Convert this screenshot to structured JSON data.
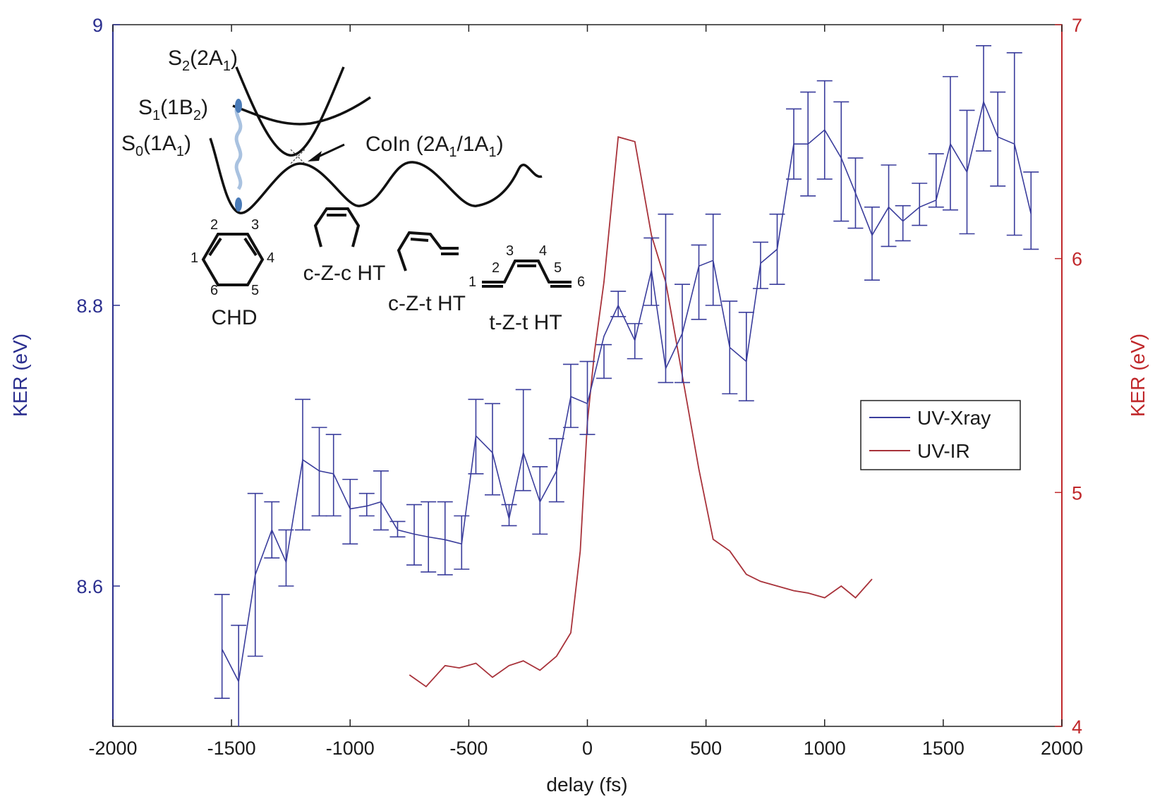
{
  "chart_data": {
    "type": "line",
    "xlabel": "delay (fs)",
    "ylabel_left": "KER (eV)",
    "ylabel_right": "KER (eV)",
    "xlim": [
      -2000,
      2000
    ],
    "ylim_left": [
      8.5,
      9.0
    ],
    "ylim_right": [
      4,
      7
    ],
    "x_ticks": [
      -2000,
      -1500,
      -1000,
      -500,
      0,
      500,
      1000,
      1500,
      2000
    ],
    "x_tick_labels": [
      "-2000",
      "-1500",
      "-1000",
      "-500",
      "0",
      "500",
      "1000",
      "1500",
      "2000"
    ],
    "y_left_ticks": [
      8.6,
      8.8,
      9.0
    ],
    "y_left_tick_labels": [
      "8.6",
      "8.8",
      "9"
    ],
    "y_right_ticks": [
      4,
      5,
      6,
      7
    ],
    "y_right_tick_labels": [
      "4",
      "5",
      "6",
      "7"
    ],
    "grid": false,
    "legend": {
      "placement": "center-right",
      "entries": [
        "UV-Xray",
        "UV-IR"
      ]
    },
    "colors": {
      "uv_xray": "#3a3d9c",
      "uv_ir": "#a8323a",
      "left_axis": "#2b2f8f",
      "right_axis": "#c0282b"
    },
    "series": [
      {
        "name": "UV-Xray",
        "axis": "left",
        "x": [
          -1540,
          -1470,
          -1400,
          -1330,
          -1270,
          -1200,
          -1130,
          -1070,
          -1000,
          -930,
          -870,
          -800,
          -730,
          -670,
          -600,
          -530,
          -470,
          -400,
          -330,
          -270,
          -200,
          -130,
          -70,
          0,
          70,
          130,
          200,
          270,
          330,
          400,
          470,
          530,
          600,
          670,
          730,
          800,
          870,
          930,
          1000,
          1070,
          1130,
          1200,
          1270,
          1330,
          1400,
          1470,
          1530,
          1600,
          1670,
          1730,
          1800,
          1870
        ],
        "y": [
          8.555,
          8.532,
          8.608,
          8.64,
          8.617,
          8.69,
          8.682,
          8.68,
          8.655,
          8.657,
          8.66,
          8.64,
          8.637,
          8.635,
          8.633,
          8.63,
          8.707,
          8.695,
          8.648,
          8.695,
          8.66,
          8.682,
          8.735,
          8.73,
          8.778,
          8.8,
          8.775,
          8.825,
          8.755,
          8.78,
          8.828,
          8.832,
          8.77,
          8.76,
          8.83,
          8.84,
          8.915,
          8.915,
          8.925,
          8.905,
          8.88,
          8.85,
          8.87,
          8.86,
          8.87,
          8.875,
          8.915,
          8.895,
          8.945,
          8.92,
          8.915,
          8.865
        ],
        "err_low": [
          8.52,
          8.48,
          8.55,
          8.62,
          8.6,
          8.64,
          8.65,
          8.65,
          8.63,
          8.65,
          8.64,
          8.635,
          8.615,
          8.61,
          8.608,
          8.612,
          8.68,
          8.665,
          8.643,
          8.668,
          8.637,
          8.66,
          8.713,
          8.708,
          8.748,
          8.792,
          8.762,
          8.8,
          8.745,
          8.745,
          8.79,
          8.8,
          8.737,
          8.732,
          8.812,
          8.815,
          8.89,
          8.878,
          8.89,
          8.86,
          8.855,
          8.818,
          8.842,
          8.846,
          8.857,
          8.87,
          8.868,
          8.851,
          8.91,
          8.885,
          8.85,
          8.84
        ],
        "err_high": [
          8.594,
          8.572,
          8.666,
          8.66,
          8.64,
          8.733,
          8.713,
          8.708,
          8.676,
          8.666,
          8.682,
          8.646,
          8.658,
          8.66,
          8.66,
          8.65,
          8.733,
          8.73,
          8.658,
          8.74,
          8.685,
          8.705,
          8.758,
          8.76,
          8.772,
          8.81,
          8.787,
          8.848,
          8.865,
          8.815,
          8.843,
          8.865,
          8.803,
          8.795,
          8.845,
          8.865,
          8.94,
          8.952,
          8.96,
          8.945,
          8.905,
          8.87,
          8.9,
          8.871,
          8.887,
          8.908,
          8.963,
          8.939,
          8.985,
          8.952,
          8.98,
          8.895
        ]
      },
      {
        "name": "UV-IR",
        "axis": "right",
        "x": [
          -750,
          -680,
          -600,
          -540,
          -470,
          -400,
          -330,
          -270,
          -200,
          -130,
          -70,
          -30,
          0,
          30,
          70,
          130,
          200,
          270,
          330,
          400,
          470,
          530,
          600,
          670,
          730,
          800,
          870,
          930,
          1000,
          1070,
          1130,
          1200
        ],
        "y": [
          4.22,
          4.17,
          4.26,
          4.25,
          4.27,
          4.21,
          4.26,
          4.28,
          4.24,
          4.3,
          4.4,
          4.75,
          5.3,
          5.6,
          5.9,
          6.52,
          6.5,
          6.1,
          5.9,
          5.5,
          5.1,
          4.8,
          4.75,
          4.65,
          4.62,
          4.6,
          4.58,
          4.57,
          4.55,
          4.6,
          4.55,
          4.63
        ]
      }
    ],
    "annotations": {
      "states": [
        "S",
        "S",
        "S"
      ],
      "state_labels": [
        {
          "letter": "S",
          "sub": "2",
          "mid": "(2A",
          "sub2": "1",
          "end": ")"
        },
        {
          "letter": "S",
          "sub": "1",
          "mid": "(1B",
          "sub2": "2",
          "end": ")"
        },
        {
          "letter": "S",
          "sub": "0",
          "mid": "(1A",
          "sub2": "1",
          "end": ")"
        }
      ],
      "coin": {
        "main": "CoIn (2A",
        "sub1": "1",
        "mid": "/1A",
        "sub2": "1",
        "end": ")"
      },
      "molecules": [
        "CHD",
        "c-Z-c HT",
        "c-Z-t HT",
        "t-Z-t HT"
      ],
      "chd_numbers": [
        "1",
        "2",
        "3",
        "4",
        "5",
        "6"
      ],
      "tzt_numbers": [
        "1",
        "2",
        "3",
        "4",
        "5",
        "6"
      ]
    }
  }
}
